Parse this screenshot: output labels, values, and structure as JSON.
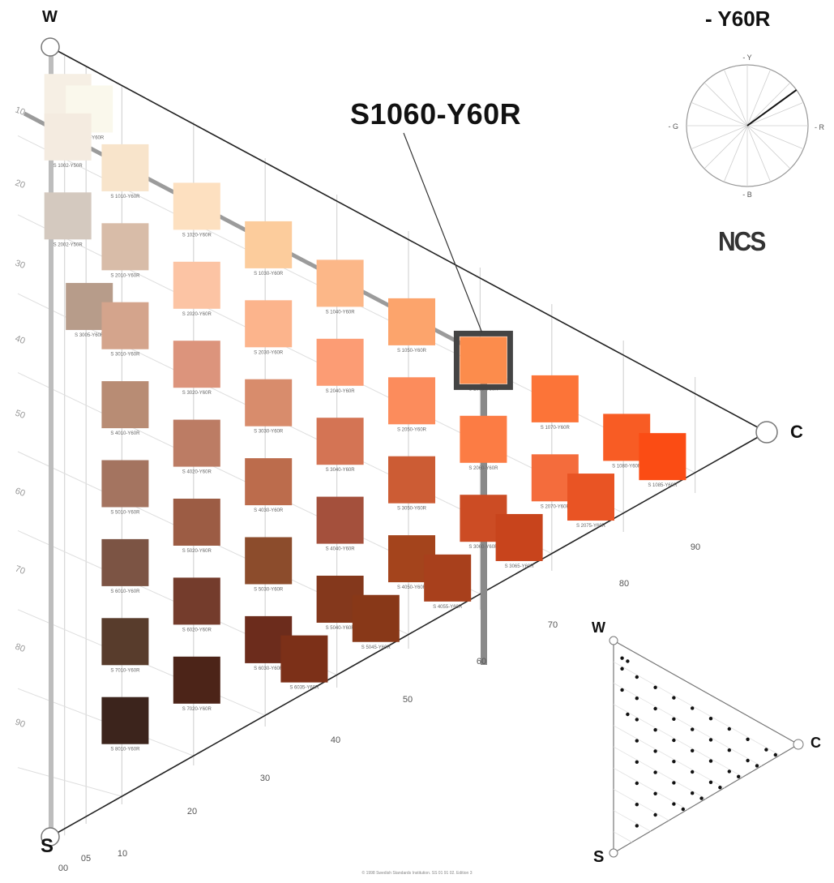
{
  "hue_title": "- Y60R",
  "highlight_label": "S1060-Y60R",
  "corner_labels": {
    "white": "W",
    "black": "S",
    "chromatic": "C"
  },
  "hue_circle": {
    "top": "Y",
    "right": "R",
    "bottom": "B",
    "left": "G",
    "hue_angle_deg": 54
  },
  "logo": "NCS",
  "nuance_rows": [
    "10",
    "20",
    "30",
    "40",
    "50",
    "60",
    "70",
    "80",
    "90"
  ],
  "chromaticness_scale": [
    "00",
    "05",
    "10",
    "20",
    "30",
    "40",
    "50",
    "60",
    "70",
    "80",
    "90"
  ],
  "swatches": [
    {
      "code": "S 0502-Y50R",
      "color": "#f6efe4"
    },
    {
      "code": "S 0505-Y60R",
      "color": "#faf8ec"
    },
    {
      "code": "S 1002-Y50R",
      "color": "#f4ebe0"
    },
    {
      "code": "S 1010-Y60R",
      "color": "#f8e4cb"
    },
    {
      "code": "S 1020-Y60R",
      "color": "#fde0c0"
    },
    {
      "code": "S 1030-Y60R",
      "color": "#fccc9c"
    },
    {
      "code": "S 1040-Y60R",
      "color": "#fcb788"
    },
    {
      "code": "S 1050-Y60R",
      "color": "#fca46c"
    },
    {
      "code": "S 1060-Y60R",
      "color": "#fc8c4c"
    },
    {
      "code": "S 1070-Y60R",
      "color": "#fc7438"
    },
    {
      "code": "S 1080-Y60R",
      "color": "#f85c24"
    },
    {
      "code": "S 1085-Y60R",
      "color": "#fb4c14"
    },
    {
      "code": "S 2002-Y50R",
      "color": "#d4c9bf"
    },
    {
      "code": "S 2010-Y60R",
      "color": "#d8bca8"
    },
    {
      "code": "S 2020-Y60R",
      "color": "#fcc4a4"
    },
    {
      "code": "S 2030-Y60R",
      "color": "#fcb48c"
    },
    {
      "code": "S 2040-Y60R",
      "color": "#fc9c74"
    },
    {
      "code": "S 2050-Y60R",
      "color": "#fc8c5c"
    },
    {
      "code": "S 2060-Y60R",
      "color": "#fc7c44"
    },
    {
      "code": "S 2070-Y60R",
      "color": "#f46c3c"
    },
    {
      "code": "S 2075-Y60R",
      "color": "#e95424"
    },
    {
      "code": "S 3005-Y60R",
      "color": "#b79c8a"
    },
    {
      "code": "S 3010-Y60R",
      "color": "#d4a48c"
    },
    {
      "code": "S 3020-Y60R",
      "color": "#dc947c"
    },
    {
      "code": "S 3030-Y60R",
      "color": "#d88c6c"
    },
    {
      "code": "S 3040-Y60R",
      "color": "#d47454"
    },
    {
      "code": "S 3050-Y60R",
      "color": "#cc5c34"
    },
    {
      "code": "S 3060-Y60R",
      "color": "#cc4c24"
    },
    {
      "code": "S 3065-Y60R",
      "color": "#c8441c"
    },
    {
      "code": "S 4010-Y60R",
      "color": "#b88c74"
    },
    {
      "code": "S 4020-Y60R",
      "color": "#bc7c64"
    },
    {
      "code": "S 4030-Y60R",
      "color": "#bc6c4c"
    },
    {
      "code": "S 4040-Y60R",
      "color": "#a4503c"
    },
    {
      "code": "S 4050-Y60R",
      "color": "#a4441c"
    },
    {
      "code": "S 4055-Y60R",
      "color": "#a8401c"
    },
    {
      "code": "S 5010-Y60R",
      "color": "#a47460"
    },
    {
      "code": "S 5020-Y60R",
      "color": "#9c5c44"
    },
    {
      "code": "S 5030-Y60R",
      "color": "#8c4c2c"
    },
    {
      "code": "S 5040-Y60R",
      "color": "#84381c"
    },
    {
      "code": "S 5045-Y60R",
      "color": "#883818"
    },
    {
      "code": "S 6010-Y60R",
      "color": "#7c5444"
    },
    {
      "code": "S 6020-Y60R",
      "color": "#743c2c"
    },
    {
      "code": "S 6030-Y60R",
      "color": "#6c2c1c"
    },
    {
      "code": "S 6035-Y60R",
      "color": "#7c3018"
    },
    {
      "code": "S 7010-Y60R",
      "color": "#583c2c"
    },
    {
      "code": "S 7020-Y60R",
      "color": "#4c2418"
    },
    {
      "code": "S 8010-Y60R",
      "color": "#3c241c"
    }
  ],
  "mini_triangle": {
    "labels": {
      "white": "W",
      "black": "S",
      "chromatic": "C"
    }
  },
  "footer": "© 1998 Swedish Standards Institution. SS 01 91 02. Edition 3"
}
